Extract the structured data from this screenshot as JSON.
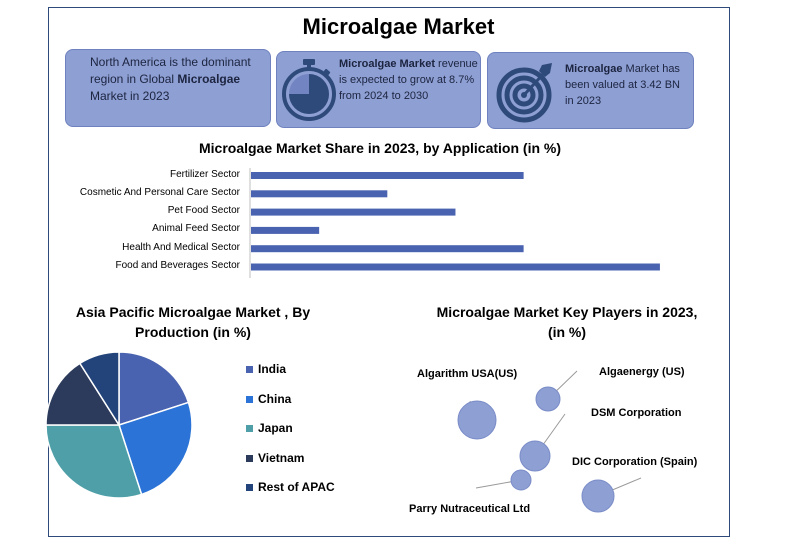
{
  "title": "Microalgae Market",
  "cards": [
    {
      "segments": [
        {
          "text": "North America is the dominant region in Global ",
          "bold": false
        },
        {
          "text": "Microalgae",
          "bold": true
        },
        {
          "text": " Market in 2023",
          "bold": false
        }
      ],
      "icon": "globe-icon"
    },
    {
      "segments": [
        {
          "text": "Microalgae Market",
          "bold": true
        },
        {
          "text": " revenue is expected to grow at 8.7% from 2024 to 2030",
          "bold": false
        }
      ],
      "icon": "stopwatch-icon"
    },
    {
      "segments": [
        {
          "text": "Microalgae",
          "bold": true
        },
        {
          "text": " Market has been valued at 3.42 BN in 2023",
          "bold": false
        }
      ],
      "icon": "target-icon"
    }
  ],
  "colors": {
    "card_fill": "#8e9fd3",
    "bar": "#4a63b0",
    "india": "#4a63b0",
    "china": "#2b73d6",
    "japan": "#4f9fa8",
    "vietnam": "#2c3b5c",
    "rest_of_apac": "#23447a",
    "bubble": "#8e9fd3"
  },
  "chart_data": [
    {
      "type": "bar",
      "orientation": "horizontal",
      "title": "Microalgae Market Share in 2023, by Application  (in %)",
      "categories": [
        "Fertilizer Sector",
        "Cosmetic And Personal Care Sector",
        "Pet Food Sector",
        "Animal Feed Sector",
        "Health And Medical Sector",
        "Food and Beverages Sector"
      ],
      "values": [
        40,
        20,
        30,
        10,
        40,
        60
      ],
      "xlim": [
        0,
        65
      ],
      "grid": false,
      "legend": "none"
    },
    {
      "type": "pie",
      "title": "Asia Pacific Microalgae Market , By Production  (in %)",
      "labels": [
        "India",
        "China",
        "Japan",
        "Vietnam",
        "Rest of APAC"
      ],
      "values": [
        20,
        25,
        30,
        16,
        9
      ],
      "legend": "right"
    },
    {
      "type": "scatter",
      "title": "Microalgae  Market Key Players in 2023, (in %)",
      "labels": [
        "Algarithm USA(US)",
        "Algaenergy (US)",
        "DSM Corporation",
        "DIC Corporation (Spain)",
        "Parry Nutraceutical  Ltd"
      ]
    }
  ]
}
